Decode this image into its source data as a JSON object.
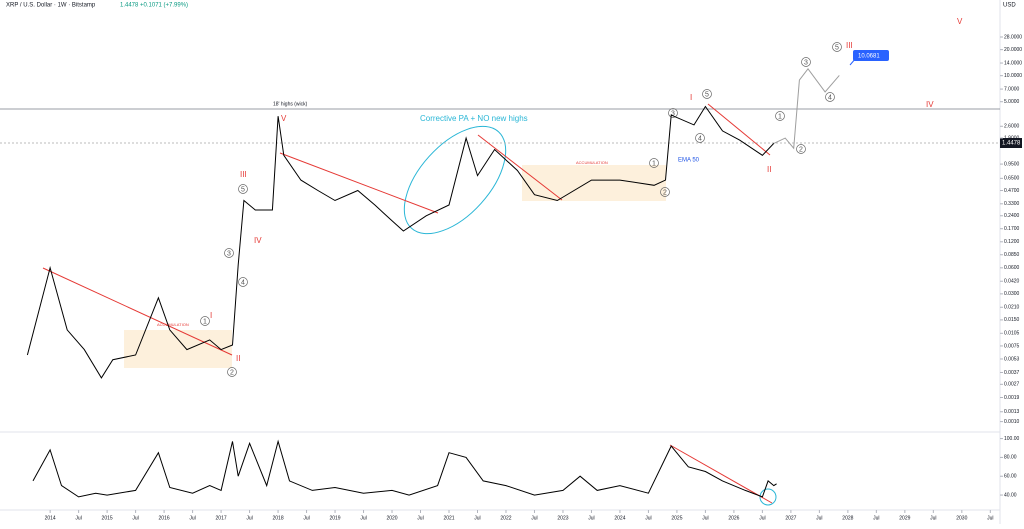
{
  "header": {
    "symbol": "XRP / U.S. Dollar · 1W · Bitstamp",
    "quote": "1.4478 +0.1071 (+7.99%)",
    "currency": "USD"
  },
  "chart_data": [
    {
      "type": "line",
      "log_scale": true,
      "series": [
        {
          "color": "#000000",
          "x": [
            2013.6,
            2014.0,
            2014.3,
            2014.6,
            2014.9,
            2015.1,
            2015.5,
            2015.9,
            2016.1,
            2016.4,
            2016.8,
            2017.0,
            2017.2,
            2017.3,
            2017.4,
            2017.6,
            2017.9,
            2018.0,
            2018.1,
            2018.4,
            2018.7,
            2019.0,
            2019.4,
            2019.7,
            2020.0,
            2020.2,
            2020.6,
            2021.0,
            2021.3,
            2021.5,
            2021.8,
            2022.2,
            2022.5,
            2022.9,
            2023.5,
            2024.0,
            2024.6,
            2024.8,
            2024.9,
            2025.3,
            2025.5,
            2025.8,
            2026.1,
            2026.5,
            2026.7
          ],
          "values": [
            0.0059,
            0.06,
            0.0115,
            0.0068,
            0.0032,
            0.0052,
            0.0059,
            0.027,
            0.0115,
            0.0068,
            0.0088,
            0.0068,
            0.0077,
            0.065,
            0.36,
            0.28,
            0.28,
            3.4,
            1.2,
            0.62,
            0.47,
            0.36,
            0.47,
            0.32,
            0.21,
            0.16,
            0.24,
            0.32,
            1.9,
            0.7,
            1.4,
            0.8,
            0.42,
            0.36,
            0.62,
            0.62,
            0.54,
            0.62,
            3.5,
            2.7,
            4.4,
            2.3,
            1.8,
            1.2,
            1.65
          ]
        },
        {
          "color": "#9e9e9e",
          "x": [
            2026.7,
            2026.9,
            2027.05,
            2027.15,
            2027.3,
            2027.6,
            2027.85
          ],
          "values": [
            1.65,
            1.9,
            1.45,
            8.9,
            12,
            6.5,
            10.0681
          ]
        }
      ],
      "xlim": [
        2013.12,
        2030.67
      ],
      "xticks": [
        2014,
        {
          "value": 2014.5,
          "label": "Jul"
        },
        2015,
        {
          "value": 2015.5,
          "label": "Jul"
        },
        2016,
        {
          "value": 2016.5,
          "label": "Jul"
        },
        2017,
        {
          "value": 2017.5,
          "label": "Jul"
        },
        2018,
        {
          "value": 2018.5,
          "label": "Jul"
        },
        2019,
        {
          "value": 2019.5,
          "label": "Jul"
        },
        2020,
        {
          "value": 2020.5,
          "label": "Jul"
        },
        2021,
        {
          "value": 2021.5,
          "label": "Jul"
        },
        2022,
        {
          "value": 2022.5,
          "label": "Jul"
        },
        2023,
        {
          "value": 2023.5,
          "label": "Jul"
        },
        2024,
        {
          "value": 2024.5,
          "label": "Jul"
        },
        2025,
        {
          "value": 2025.5,
          "label": "Jul"
        },
        2026,
        {
          "value": 2026.5,
          "label": "Jul"
        },
        2027,
        {
          "value": 2027.5,
          "label": "Jul"
        },
        2028,
        {
          "value": 2028.5,
          "label": "Jul"
        },
        2029,
        {
          "value": 2029.5,
          "label": "Jul"
        },
        2030,
        {
          "value": 2030.5,
          "label": "Jul"
        }
      ],
      "ylim": [
        0.0008,
        75
      ],
      "yticks": [
        {
          "value": 28,
          "label": "28.0000"
        },
        {
          "value": 20,
          "label": "20.0000"
        },
        {
          "value": 14,
          "label": "14.0000"
        },
        {
          "value": 10,
          "label": "10.0000"
        },
        {
          "value": 7,
          "label": "7.0000"
        },
        {
          "value": 5,
          "label": "5.0000"
        },
        {
          "value": 2.6,
          "label": "2.6000"
        },
        {
          "value": 1.9,
          "label": "1.9000"
        },
        {
          "value": 0.95,
          "label": "0.9500"
        },
        {
          "value": 0.65,
          "label": "0.6500"
        },
        {
          "value": 0.47,
          "label": "0.4700"
        },
        {
          "value": 0.33,
          "label": "0.3300"
        },
        {
          "value": 0.24,
          "label": "0.2400"
        },
        {
          "value": 0.17,
          "label": "0.1700"
        },
        {
          "value": 0.12,
          "label": "0.1200"
        },
        {
          "value": 0.085,
          "label": "0.0850"
        },
        {
          "value": 0.06,
          "label": "0.0600"
        },
        {
          "value": 0.042,
          "label": "0.0420"
        },
        {
          "value": 0.03,
          "label": "0.0300"
        },
        {
          "value": 0.021,
          "label": "0.0210"
        },
        {
          "value": 0.015,
          "label": "0.0150"
        },
        {
          "value": 0.0105,
          "label": "0.0105"
        },
        {
          "value": 0.0075,
          "label": "0.0075"
        },
        {
          "value": 0.0053,
          "label": "0.0053"
        },
        {
          "value": 0.0037,
          "label": "0.0037"
        },
        {
          "value": 0.0027,
          "label": "0.0027"
        },
        {
          "value": 0.0019,
          "label": "0.0019"
        },
        {
          "value": 0.0013,
          "label": "0.0013"
        },
        {
          "value": 0.001,
          "label": "0.0010"
        }
      ],
      "last_price": 1.4478,
      "annotations": {
        "corrective": "Corrective PA + NO new highs",
        "accumulation": "ACCUMULATION",
        "highs": "18' highs (wick)",
        "ema": "EMA 50",
        "target": 10.0681,
        "waves": [
          "I",
          "II",
          "III",
          "IV",
          "V"
        ],
        "counts": [
          "1",
          "2",
          "3",
          "4",
          "5"
        ]
      }
    },
    {
      "type": "line",
      "series": [
        {
          "color": "#000000",
          "x": [
            2013.7,
            2014.0,
            2014.2,
            2014.5,
            2014.8,
            2015.0,
            2015.5,
            2015.9,
            2016.1,
            2016.5,
            2016.8,
            2017.0,
            2017.2,
            2017.3,
            2017.5,
            2017.8,
            2018.0,
            2018.2,
            2018.6,
            2019.0,
            2019.5,
            2020.0,
            2020.3,
            2020.8,
            2021.0,
            2021.3,
            2021.6,
            2022.0,
            2022.5,
            2023.0,
            2023.3,
            2023.6,
            2024.0,
            2024.5,
            2024.9,
            2025.2,
            2025.5,
            2025.8,
            2026.2,
            2026.5,
            2026.6,
            2026.7,
            2026.75
          ],
          "values": [
            55,
            88,
            50,
            38,
            42,
            40,
            45,
            85,
            48,
            42,
            50,
            45,
            97,
            60,
            95,
            50,
            97,
            55,
            45,
            48,
            42,
            45,
            40,
            50,
            85,
            80,
            55,
            50,
            40,
            45,
            60,
            45,
            50,
            42,
            92,
            70,
            65,
            55,
            45,
            38,
            55,
            50,
            52
          ]
        }
      ],
      "xlim": [
        2013.12,
        2030.67
      ],
      "ylim": [
        22,
        107
      ],
      "yticks": [
        {
          "value": 100,
          "label": "100.00"
        },
        {
          "value": 80,
          "label": "80.00"
        },
        {
          "value": 60,
          "label": "60.00"
        },
        {
          "value": 40,
          "label": "40.00"
        }
      ]
    }
  ]
}
